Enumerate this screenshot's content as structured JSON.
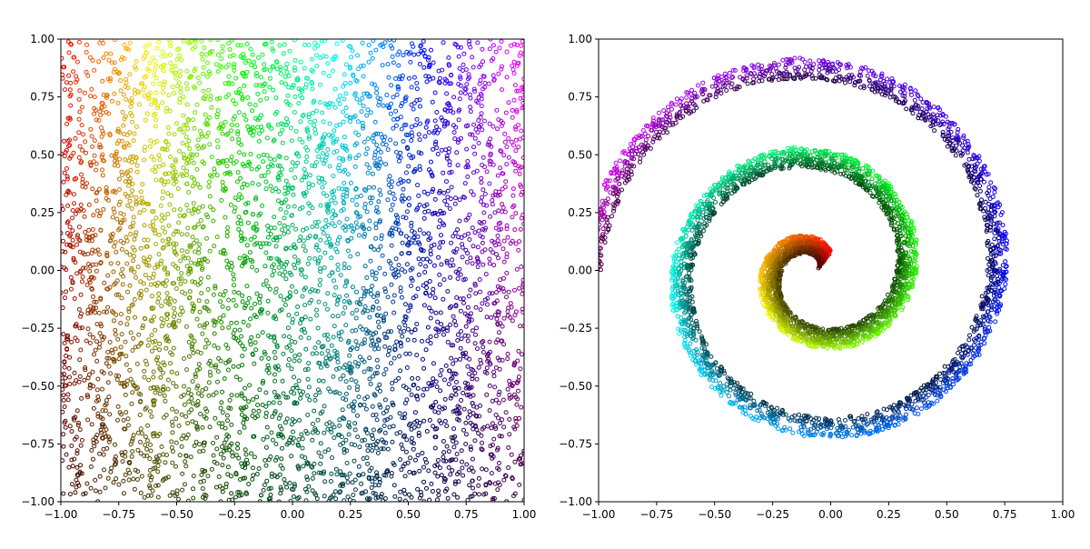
{
  "chart_data": [
    {
      "type": "scatter",
      "title": "",
      "xlabel": "",
      "ylabel": "",
      "xlim": [
        -1,
        1
      ],
      "ylim": [
        -1,
        1
      ],
      "xticks": [
        -1.0,
        -0.75,
        -0.5,
        -0.25,
        0.0,
        0.25,
        0.5,
        0.75,
        1.0
      ],
      "yticks": [
        -1.0,
        -0.75,
        -0.5,
        -0.25,
        0.0,
        0.25,
        0.5,
        0.75,
        1.0
      ],
      "xtick_labels": [
        "−1.00",
        "−0.75",
        "−0.50",
        "−0.25",
        "0.00",
        "0.25",
        "0.50",
        "0.75",
        "1.00"
      ],
      "ytick_labels": [
        "−1.00",
        "−0.75",
        "−0.50",
        "−0.25",
        "0.00",
        "0.25",
        "0.50",
        "0.75",
        "1.00"
      ],
      "grid": false,
      "legend": "none",
      "marker": "hollow circle",
      "color_mapping": "hue by angle around (0,0), brightness increasing with y",
      "distribution": "uniform random points filling the square [-1,1] x [-1,1]",
      "samples": [
        {
          "x": -0.95,
          "y": 0.9,
          "color": "#cc2a10"
        },
        {
          "x": -0.6,
          "y": 0.9,
          "color": "#e6e000"
        },
        {
          "x": -0.3,
          "y": 0.85,
          "color": "#3cc800"
        },
        {
          "x": 0.05,
          "y": 0.95,
          "color": "#00e0e0"
        },
        {
          "x": 0.4,
          "y": 0.85,
          "color": "#3030d0"
        },
        {
          "x": 0.9,
          "y": 0.9,
          "color": "#e000d0"
        },
        {
          "x": -0.9,
          "y": 0.4,
          "color": "#c01010"
        },
        {
          "x": -0.5,
          "y": 0.4,
          "color": "#b0b000"
        },
        {
          "x": 0.0,
          "y": 0.3,
          "color": "#10a040"
        },
        {
          "x": 0.5,
          "y": 0.4,
          "color": "#2020b0"
        },
        {
          "x": 0.9,
          "y": 0.3,
          "color": "#b000b0"
        },
        {
          "x": -0.9,
          "y": -0.5,
          "color": "#603010"
        },
        {
          "x": -0.5,
          "y": -0.8,
          "color": "#404000"
        },
        {
          "x": 0.0,
          "y": -0.7,
          "color": "#006040"
        },
        {
          "x": 0.5,
          "y": -0.7,
          "color": "#200070"
        },
        {
          "x": 0.9,
          "y": -0.8,
          "color": "#700050"
        }
      ]
    },
    {
      "type": "scatter",
      "title": "",
      "xlabel": "",
      "ylabel": "",
      "xlim": [
        -1,
        1
      ],
      "ylim": [
        -1,
        1
      ],
      "xticks": [
        -1.0,
        -0.75,
        -0.5,
        -0.25,
        0.0,
        0.25,
        0.5,
        0.75,
        1.0
      ],
      "yticks": [
        -1.0,
        -0.75,
        -0.5,
        -0.25,
        0.0,
        0.25,
        0.5,
        0.75,
        1.0
      ],
      "xtick_labels": [
        "−1.00",
        "−0.75",
        "−0.50",
        "−0.25",
        "0.00",
        "0.25",
        "0.50",
        "0.75",
        "1.00"
      ],
      "ytick_labels": [
        "−1.00",
        "−0.75",
        "−0.50",
        "−0.25",
        "0.00",
        "0.25",
        "0.50",
        "0.75",
        "1.00"
      ],
      "grid": false,
      "legend": "none",
      "marker": "hollow circle",
      "color_mapping": "same colors as the left panel, points mapped onto a spiral",
      "distribution": "spiral winding out from about (-0.1, 0.0) to about (-0.98, 0.02), about 2.5 turns",
      "samples": [
        {
          "x": -0.1,
          "y": 0.0,
          "color": "#d00000"
        },
        {
          "x": 0.2,
          "y": 0.15,
          "color": "#e0e000"
        },
        {
          "x": -0.25,
          "y": -0.05,
          "color": "#40d000"
        },
        {
          "x": 0.0,
          "y": -0.4,
          "color": "#20c040"
        },
        {
          "x": 0.5,
          "y": 0.1,
          "color": "#00d0d0"
        },
        {
          "x": 0.0,
          "y": 0.6,
          "color": "#00c0d0"
        },
        {
          "x": -0.6,
          "y": 0.0,
          "color": "#1060c0"
        },
        {
          "x": -0.3,
          "y": -0.6,
          "color": "#1010c0"
        },
        {
          "x": 0.1,
          "y": -0.75,
          "color": "#1010d0"
        },
        {
          "x": 0.8,
          "y": -0.1,
          "color": "#7000d0"
        },
        {
          "x": 0.6,
          "y": 0.7,
          "color": "#600060"
        },
        {
          "x": 0.0,
          "y": 0.9,
          "color": "#e000c0"
        },
        {
          "x": -0.7,
          "y": 0.55,
          "color": "#c00060"
        },
        {
          "x": -0.97,
          "y": 0.03,
          "color": "#a00030"
        }
      ]
    }
  ]
}
